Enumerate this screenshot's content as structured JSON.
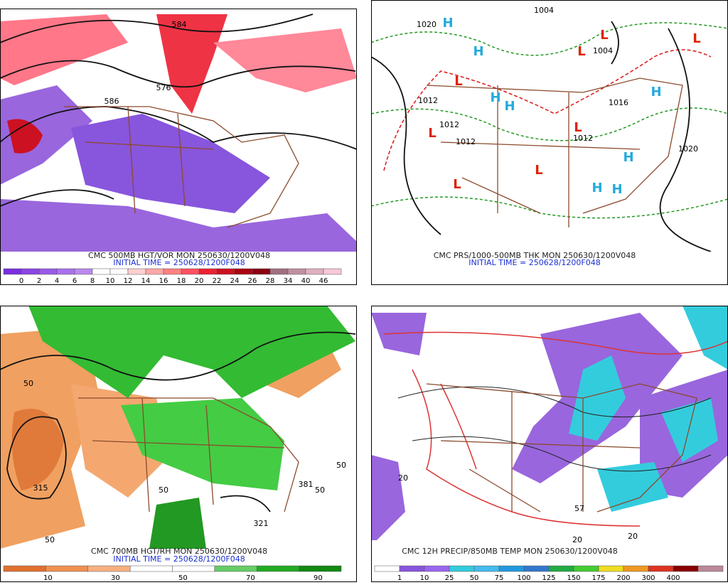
{
  "panels": [
    {
      "caption": "CMC 500MB HGT/VOR MON 250630/1200V048",
      "initial_time": "INITIAL TIME = 250628/1200F048",
      "colorbar": [
        "0",
        "2",
        "4",
        "6",
        "8",
        "10",
        "12",
        "14",
        "16",
        "18",
        "20",
        "22",
        "24",
        "26",
        "28",
        "34",
        "40",
        "46"
      ],
      "map_labels": [
        "584",
        "576",
        "586"
      ]
    },
    {
      "caption": "CMC PRS/1000-500MB THK MON 250630/1200V048",
      "initial_time": "INITIAL TIME = 250628/1200F048",
      "map_labels": [
        "1020",
        "1004",
        "1004",
        "1012",
        "1012",
        "1012",
        "1016",
        "1012",
        "1020",
        "H",
        "H",
        "H",
        "H",
        "H",
        "H",
        "H",
        "H",
        "L",
        "L",
        "L",
        "L",
        "L",
        "L",
        "L",
        "L"
      ]
    },
    {
      "caption": "CMC 700MB HGT/RH MON 250630/1200V048",
      "initial_time": "INITIAL TIME = 250628/1200F048",
      "colorbar": [
        "10",
        "30",
        "50",
        "70",
        "90"
      ],
      "map_labels": [
        "50",
        "50",
        "50",
        "50",
        "50",
        "315",
        "321",
        "381"
      ]
    },
    {
      "caption": "CMC 12H PRECIP/850MB TEMP MON 250630/1200V048",
      "colorbar": [
        "1",
        "10",
        "25",
        "50",
        "75",
        "100",
        "125",
        "150",
        "175",
        "200",
        "300",
        "400"
      ],
      "map_labels": [
        "20",
        "20",
        "20",
        "57"
      ]
    }
  ]
}
